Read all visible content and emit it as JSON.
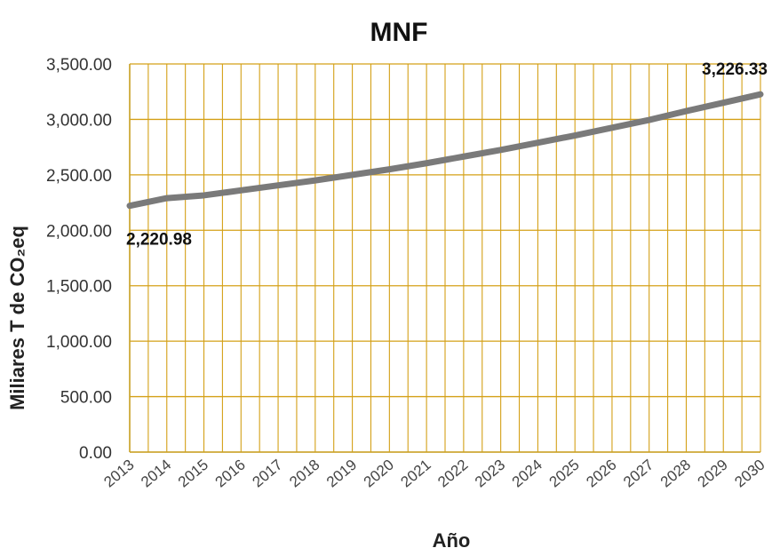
{
  "chart_data": {
    "type": "line",
    "title": "MNF",
    "xlabel": "Año",
    "ylabel": "Miliares T de CO₂eq",
    "x": [
      2013,
      2014,
      2015,
      2016,
      2017,
      2018,
      2019,
      2020,
      2021,
      2022,
      2023,
      2024,
      2025,
      2026,
      2027,
      2028,
      2029,
      2030
    ],
    "series": [
      {
        "values": [
          2220.98,
          2290,
          2315,
          2360,
          2405,
          2450,
          2500,
          2550,
          2605,
          2665,
          2725,
          2790,
          2855,
          2925,
          2995,
          3075,
          3150,
          3226.33
        ]
      }
    ],
    "ylim": [
      0,
      3500
    ],
    "yticks": [
      "0.00",
      "500.00",
      "1,000.00",
      "1,500.00",
      "2,000.00",
      "2,500.00",
      "3,000.00",
      "3,500.00"
    ],
    "data_labels": [
      {
        "index": 0,
        "text": "2,220.98"
      },
      {
        "index": 17,
        "text": "3,226.33"
      }
    ],
    "grid": true,
    "colors": {
      "line": "#7a7a7a",
      "grid": "#d4a017",
      "axis": "#c9a227"
    }
  }
}
